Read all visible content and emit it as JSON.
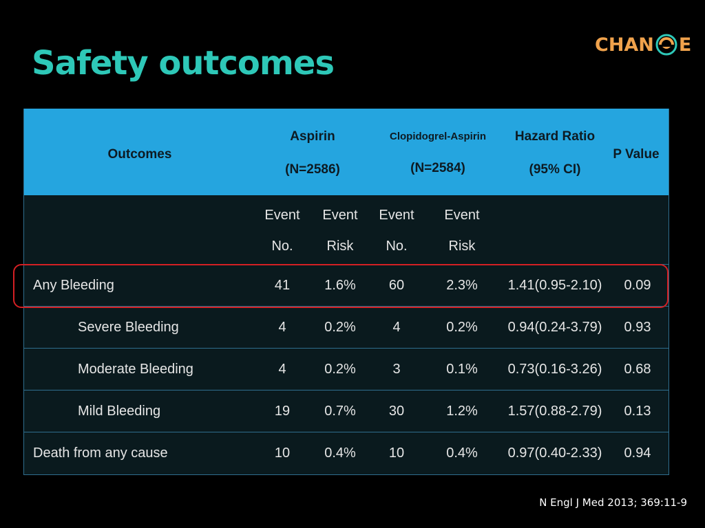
{
  "title": "Safety outcomes",
  "logo": {
    "text_left": "CHAN",
    "text_right": "E",
    "colors": {
      "text": "#f0a24c",
      "ring": "#2ec8b8"
    }
  },
  "table": {
    "header": {
      "outcomes": "Outcomes",
      "aspirin": {
        "line1": "Aspirin",
        "line2": "(N=2586)"
      },
      "clopidogrel": {
        "line1": "Clopidogrel-Aspirin",
        "line2": "(N=2584)"
      },
      "hazard": {
        "line1": "Hazard Ratio",
        "line2": "(95% CI)"
      },
      "pvalue": "P Value"
    },
    "subheader": [
      {
        "line1": "Event",
        "line2": "No."
      },
      {
        "line1": "Event",
        "line2": "Risk"
      },
      {
        "line1": "Event",
        "line2": "No."
      },
      {
        "line1": "Event",
        "line2": "Risk"
      }
    ],
    "rows": [
      {
        "label": "Any Bleeding",
        "indent": false,
        "a_no": "41",
        "a_risk": "1.6%",
        "c_no": "60",
        "c_risk": "2.3%",
        "hr": "1.41(0.95-2.10)",
        "p": "0.09"
      },
      {
        "label": "Severe Bleeding",
        "indent": true,
        "a_no": "4",
        "a_risk": "0.2%",
        "c_no": "4",
        "c_risk": "0.2%",
        "hr": "0.94(0.24-3.79)",
        "p": "0.93"
      },
      {
        "label": "Moderate Bleeding",
        "indent": true,
        "a_no": "4",
        "a_risk": "0.2%",
        "c_no": "3",
        "c_risk": "0.1%",
        "hr": "0.73(0.16-3.26)",
        "p": "0.68"
      },
      {
        "label": "Mild Bleeding",
        "indent": true,
        "a_no": "19",
        "a_risk": "0.7%",
        "c_no": "30",
        "c_risk": "1.2%",
        "hr": "1.57(0.88-2.79)",
        "p": "0.13"
      },
      {
        "label": "Death from any cause",
        "indent": false,
        "a_no": "10",
        "a_risk": "0.4%",
        "c_no": "10",
        "c_risk": "0.4%",
        "hr": "0.97(0.40-2.33)",
        "p": "0.94"
      }
    ]
  },
  "citation": "N Engl J Med 2013; 369:11-9",
  "colors": {
    "title": "#2ec8b8",
    "header_bg": "#25a5df",
    "highlight": "#d42024",
    "body_bg": "#0a1a1e"
  }
}
